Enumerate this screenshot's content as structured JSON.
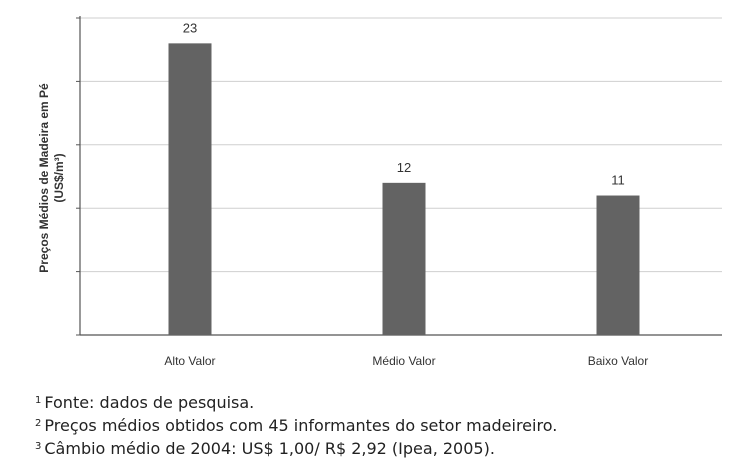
{
  "chart_data": {
    "type": "bar",
    "categories": [
      "Alto Valor",
      "Médio Valor",
      "Baixo Valor"
    ],
    "values": [
      23,
      12,
      11
    ],
    "data_labels": [
      "23",
      "12",
      "11"
    ],
    "title": "",
    "xlabel": "",
    "ylabel": "Preços Médios de Madeira em Pé",
    "ylabel_unit": "(US$/m³)",
    "ylim": [
      0,
      25
    ],
    "yticks": [
      0,
      5,
      10,
      15,
      20,
      25
    ],
    "ytick_labels_shown": false,
    "grid": "horizontal",
    "legend": "none",
    "bar_color": "#636363"
  },
  "notes": [
    {
      "marker": "1",
      "text": "Fonte: dados de pesquisa."
    },
    {
      "marker": "2",
      "text": "Preços médios obtidos com 45 informantes do setor madeireiro."
    },
    {
      "marker": "3",
      "text": "Câmbio médio de 2004: US$ 1,00/ R$ 2,92 (Ipea, 2005)."
    }
  ]
}
